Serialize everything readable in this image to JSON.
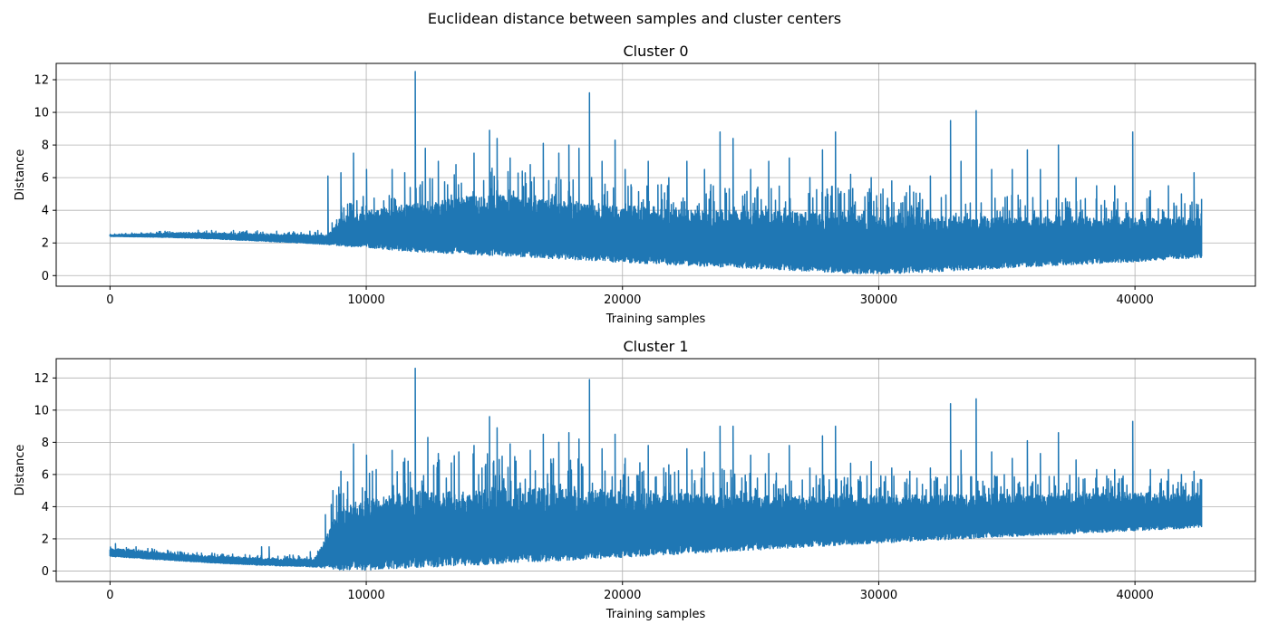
{
  "figure": {
    "title": "Euclidean distance between samples and cluster centers"
  },
  "colors": {
    "series": "#1f77b4",
    "grid": "#b0b0b0",
    "axes": "#000000"
  },
  "chart_data": [
    {
      "type": "line",
      "title": "Cluster 0",
      "xlabel": "Training samples",
      "ylabel": "Distance",
      "xlim": [
        -2100,
        44700
      ],
      "ylim": [
        -0.65,
        13.0
      ],
      "xticks": [
        0,
        10000,
        20000,
        30000,
        40000
      ],
      "yticks": [
        0,
        2,
        4,
        6,
        8,
        10,
        12
      ],
      "grid": true,
      "x_max_sample": 42600,
      "series": [
        {
          "name": "",
          "lower_envelope": [
            [
              0,
              2.4
            ],
            [
              2000,
              2.35
            ],
            [
              4000,
              2.25
            ],
            [
              6000,
              2.1
            ],
            [
              8000,
              1.95
            ],
            [
              10000,
              1.7
            ],
            [
              12000,
              1.45
            ],
            [
              16000,
              1.15
            ],
            [
              20000,
              0.8
            ],
            [
              24000,
              0.5
            ],
            [
              28000,
              0.2
            ],
            [
              29000,
              0.1
            ],
            [
              30000,
              0.1
            ],
            [
              32000,
              0.2
            ],
            [
              36000,
              0.55
            ],
            [
              40000,
              0.85
            ],
            [
              42600,
              1.1
            ]
          ],
          "upper_envelope": [
            [
              0,
              2.5
            ],
            [
              3000,
              2.65
            ],
            [
              6000,
              2.55
            ],
            [
              8500,
              2.5
            ],
            [
              9000,
              3.5
            ],
            [
              10000,
              4.0
            ],
            [
              12000,
              4.5
            ],
            [
              15000,
              5.0
            ],
            [
              20000,
              4.3
            ],
            [
              25000,
              4.0
            ],
            [
              29000,
              3.8
            ],
            [
              32000,
              3.6
            ],
            [
              36000,
              3.6
            ],
            [
              40000,
              3.6
            ],
            [
              42600,
              3.6
            ]
          ],
          "peaks": [
            [
              8500,
              6.1
            ],
            [
              9000,
              6.3
            ],
            [
              9500,
              7.5
            ],
            [
              10000,
              6.5
            ],
            [
              11000,
              6.5
            ],
            [
              11500,
              6.3
            ],
            [
              11900,
              12.5
            ],
            [
              12300,
              7.8
            ],
            [
              12800,
              7.0
            ],
            [
              13500,
              6.8
            ],
            [
              14200,
              7.5
            ],
            [
              14800,
              8.9
            ],
            [
              15100,
              8.4
            ],
            [
              15600,
              7.2
            ],
            [
              16400,
              6.8
            ],
            [
              16900,
              8.1
            ],
            [
              17500,
              7.5
            ],
            [
              17900,
              8.0
            ],
            [
              18300,
              7.8
            ],
            [
              18700,
              11.2
            ],
            [
              19200,
              7.0
            ],
            [
              19700,
              8.3
            ],
            [
              20100,
              6.5
            ],
            [
              21000,
              7.0
            ],
            [
              21800,
              6.0
            ],
            [
              22500,
              7.0
            ],
            [
              23200,
              6.5
            ],
            [
              23800,
              8.8
            ],
            [
              24300,
              8.4
            ],
            [
              25000,
              6.5
            ],
            [
              25700,
              7.0
            ],
            [
              26500,
              7.2
            ],
            [
              27300,
              6.0
            ],
            [
              27800,
              7.7
            ],
            [
              28300,
              8.8
            ],
            [
              28900,
              6.2
            ],
            [
              29700,
              6.0
            ],
            [
              30500,
              5.8
            ],
            [
              31200,
              5.5
            ],
            [
              32000,
              6.1
            ],
            [
              32800,
              9.5
            ],
            [
              33200,
              7.0
            ],
            [
              33800,
              10.1
            ],
            [
              34400,
              6.5
            ],
            [
              35200,
              6.5
            ],
            [
              35800,
              7.7
            ],
            [
              36300,
              6.5
            ],
            [
              37000,
              8.0
            ],
            [
              37700,
              6.0
            ],
            [
              38500,
              5.5
            ],
            [
              39200,
              5.5
            ],
            [
              39900,
              8.8
            ],
            [
              40600,
              5.2
            ],
            [
              41300,
              5.5
            ],
            [
              41800,
              5.0
            ],
            [
              42300,
              6.3
            ],
            [
              42600,
              4.7
            ]
          ]
        }
      ]
    },
    {
      "type": "line",
      "title": "Cluster 1",
      "xlabel": "Training samples",
      "ylabel": "Distance",
      "xlim": [
        -2100,
        44700
      ],
      "ylim": [
        -0.65,
        13.2
      ],
      "xticks": [
        0,
        10000,
        20000,
        30000,
        40000
      ],
      "yticks": [
        0,
        2,
        4,
        6,
        8,
        10,
        12
      ],
      "grid": true,
      "x_max_sample": 42600,
      "series": [
        {
          "name": "",
          "lower_envelope": [
            [
              0,
              0.9
            ],
            [
              2000,
              0.7
            ],
            [
              4000,
              0.5
            ],
            [
              6000,
              0.35
            ],
            [
              8000,
              0.25
            ],
            [
              9000,
              0.05
            ],
            [
              10000,
              0.05
            ],
            [
              12000,
              0.2
            ],
            [
              16000,
              0.5
            ],
            [
              20000,
              0.85
            ],
            [
              24000,
              1.2
            ],
            [
              28000,
              1.55
            ],
            [
              32000,
              1.9
            ],
            [
              36000,
              2.2
            ],
            [
              40000,
              2.5
            ],
            [
              42600,
              2.7
            ]
          ],
          "upper_envelope": [
            [
              0,
              1.4
            ],
            [
              1000,
              1.3
            ],
            [
              3000,
              1.0
            ],
            [
              6000,
              0.8
            ],
            [
              8000,
              0.75
            ],
            [
              8500,
              2.5
            ],
            [
              9000,
              4.0
            ],
            [
              10000,
              4.5
            ],
            [
              12000,
              5.0
            ],
            [
              15000,
              5.2
            ],
            [
              20000,
              5.0
            ],
            [
              25000,
              4.7
            ],
            [
              30000,
              4.7
            ],
            [
              35000,
              4.8
            ],
            [
              40000,
              4.9
            ],
            [
              42600,
              4.8
            ]
          ],
          "peaks": [
            [
              200,
              1.7
            ],
            [
              1000,
              1.5
            ],
            [
              2000,
              1.1
            ],
            [
              3000,
              1.0
            ],
            [
              4000,
              0.9
            ],
            [
              5000,
              0.9
            ],
            [
              5900,
              1.5
            ],
            [
              6200,
              1.5
            ],
            [
              7000,
              1.0
            ],
            [
              7800,
              1.2
            ],
            [
              8400,
              3.5
            ],
            [
              8700,
              5.0
            ],
            [
              9000,
              6.2
            ],
            [
              9500,
              7.9
            ],
            [
              10000,
              7.2
            ],
            [
              11000,
              7.5
            ],
            [
              11500,
              7.0
            ],
            [
              11900,
              12.6
            ],
            [
              12400,
              8.3
            ],
            [
              12800,
              7.3
            ],
            [
              13600,
              7.4
            ],
            [
              14200,
              7.8
            ],
            [
              14800,
              9.6
            ],
            [
              15100,
              8.9
            ],
            [
              15600,
              7.9
            ],
            [
              16400,
              7.5
            ],
            [
              16900,
              8.5
            ],
            [
              17500,
              8.0
            ],
            [
              17900,
              8.6
            ],
            [
              18300,
              8.2
            ],
            [
              18700,
              11.9
            ],
            [
              19200,
              7.6
            ],
            [
              19700,
              8.5
            ],
            [
              20100,
              7.0
            ],
            [
              21000,
              7.8
            ],
            [
              21800,
              6.6
            ],
            [
              22500,
              7.6
            ],
            [
              23200,
              7.4
            ],
            [
              23800,
              9.0
            ],
            [
              24300,
              9.0
            ],
            [
              25000,
              7.2
            ],
            [
              25700,
              7.3
            ],
            [
              26500,
              7.8
            ],
            [
              27300,
              6.4
            ],
            [
              27800,
              8.4
            ],
            [
              28300,
              9.0
            ],
            [
              28900,
              6.7
            ],
            [
              29700,
              6.8
            ],
            [
              30500,
              6.4
            ],
            [
              31200,
              6.2
            ],
            [
              32000,
              6.4
            ],
            [
              32800,
              10.4
            ],
            [
              33200,
              7.5
            ],
            [
              33800,
              10.7
            ],
            [
              34400,
              7.4
            ],
            [
              35200,
              7.0
            ],
            [
              35800,
              8.1
            ],
            [
              36300,
              7.3
            ],
            [
              37000,
              8.6
            ],
            [
              37700,
              6.9
            ],
            [
              38500,
              6.3
            ],
            [
              39200,
              6.3
            ],
            [
              39900,
              9.3
            ],
            [
              40600,
              6.3
            ],
            [
              41300,
              6.3
            ],
            [
              41800,
              6.0
            ],
            [
              42300,
              6.2
            ],
            [
              42600,
              5.7
            ]
          ]
        }
      ]
    }
  ]
}
